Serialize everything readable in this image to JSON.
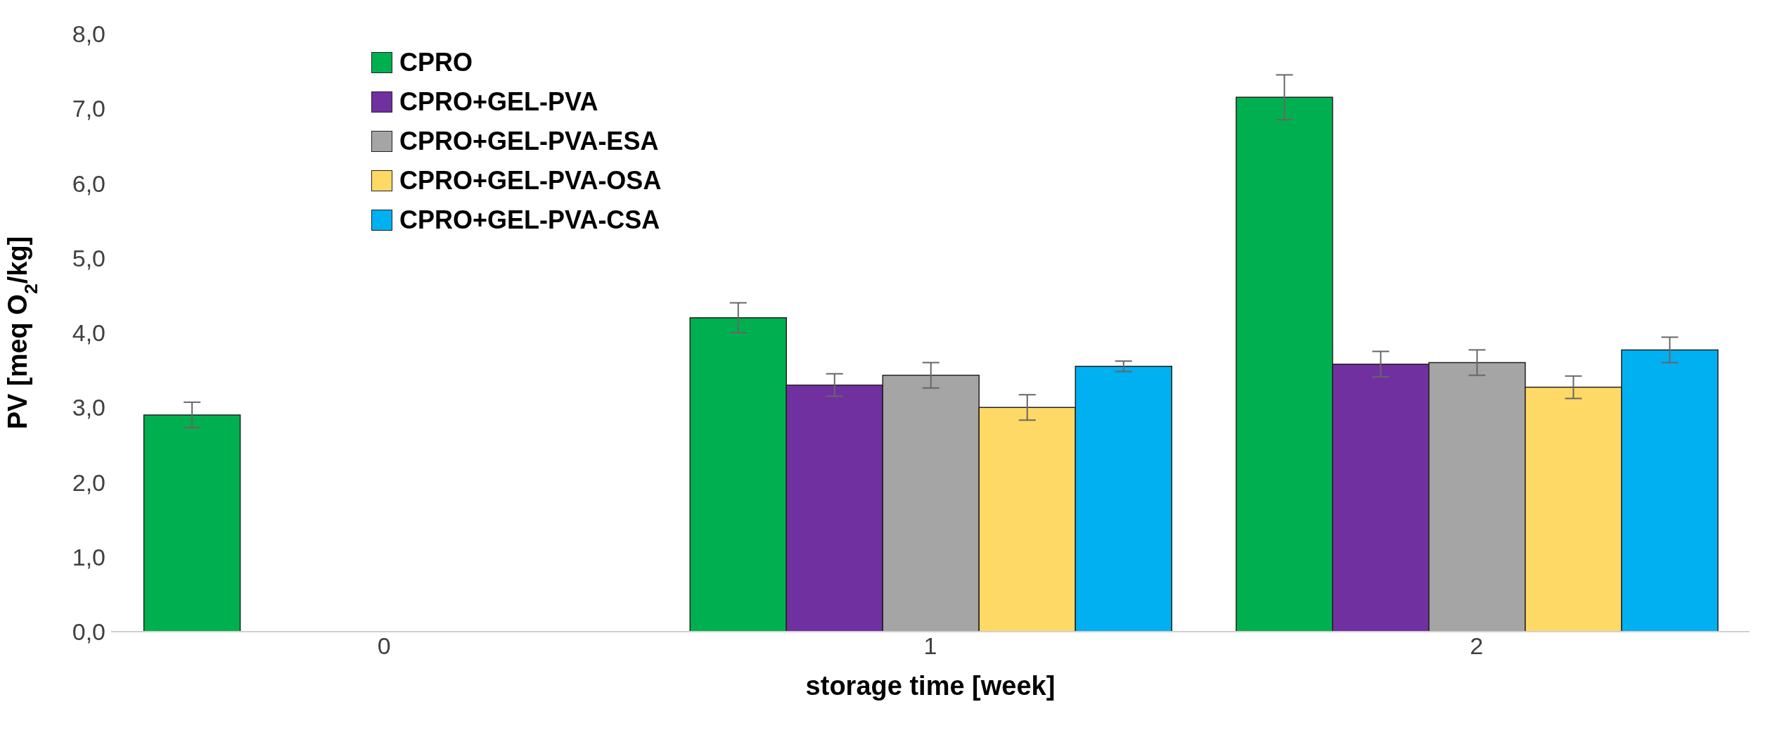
{
  "chart_data": {
    "type": "bar",
    "xlabel": "storage time [week]",
    "ylabel": "PV [meq O$_{2}$/kg]",
    "categories": [
      "0",
      "1",
      "2"
    ],
    "series": [
      {
        "name": "CPRO",
        "color": "#00b050",
        "values": [
          2.9,
          4.2,
          7.15
        ],
        "errors": [
          0.17,
          0.2,
          0.3
        ]
      },
      {
        "name": "CPRO+GEL-PVA",
        "color": "#7030a0",
        "values": [
          null,
          3.3,
          3.58
        ],
        "errors": [
          null,
          0.15,
          0.17
        ]
      },
      {
        "name": "CPRO+GEL-PVA-ESA",
        "color": "#a5a5a5",
        "values": [
          null,
          3.43,
          3.6
        ],
        "errors": [
          null,
          0.17,
          0.17
        ]
      },
      {
        "name": "CPRO+GEL-PVA-OSA",
        "color": "#ffd966",
        "values": [
          null,
          3.0,
          3.27
        ],
        "errors": [
          null,
          0.17,
          0.15
        ]
      },
      {
        "name": "CPRO+GEL-PVA-CSA",
        "color": "#00b0f0",
        "values": [
          null,
          3.55,
          3.77
        ],
        "errors": [
          null,
          0.07,
          0.17
        ]
      }
    ],
    "ylim": [
      0,
      8
    ],
    "yticks": [
      {
        "value": 0,
        "label": "0,0"
      },
      {
        "value": 1,
        "label": "1,0"
      },
      {
        "value": 2,
        "label": "2,0"
      },
      {
        "value": 3,
        "label": "3,0"
      },
      {
        "value": 4,
        "label": "4,0"
      },
      {
        "value": 5,
        "label": "5,0"
      },
      {
        "value": 6,
        "label": "6,0"
      },
      {
        "value": 7,
        "label": "7,0"
      },
      {
        "value": 8,
        "label": "8,0"
      }
    ],
    "grid": false,
    "legend": "top left"
  }
}
